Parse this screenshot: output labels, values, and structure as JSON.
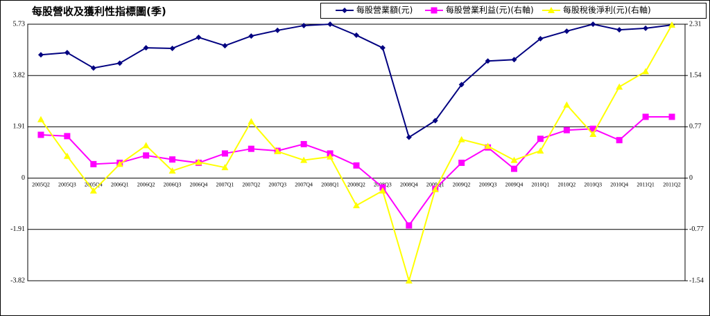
{
  "chart_data": {
    "type": "line",
    "title": "每股營收及獲利性指標圖(季)",
    "categories": [
      "2005Q2",
      "2005Q3",
      "2005Q4",
      "2006Q1",
      "2006Q2",
      "2006Q3",
      "2006Q4",
      "2007Q1",
      "2007Q2",
      "2007Q3",
      "2007Q4",
      "2008Q1",
      "2008Q2",
      "2008Q3",
      "2008Q4",
      "2009Q1",
      "2009Q2",
      "2009Q3",
      "2009Q4",
      "2010Q1",
      "2010Q2",
      "2010Q3",
      "2010Q4",
      "2011Q1",
      "2011Q2"
    ],
    "series": [
      {
        "name": "每股營業額(元)",
        "color": "#000080",
        "marker": "diamond",
        "values": [
          4.59,
          4.67,
          4.1,
          4.28,
          4.85,
          4.83,
          5.24,
          4.93,
          5.29,
          5.5,
          5.68,
          5.73,
          5.32,
          4.85,
          1.52,
          2.14,
          3.48,
          4.36,
          4.41,
          5.19,
          5.47,
          5.73,
          5.52,
          5.58,
          5.7
        ]
      },
      {
        "name": "每股營業利益(元)(右軸)",
        "color": "#ff00ff",
        "marker": "square",
        "axis": "y2",
        "values": [
          0.65,
          0.63,
          0.21,
          0.23,
          0.34,
          0.28,
          0.23,
          0.37,
          0.44,
          0.41,
          0.51,
          0.37,
          0.19,
          -0.14,
          -0.71,
          -0.16,
          0.23,
          0.46,
          0.14,
          0.59,
          0.72,
          0.74,
          0.57,
          0.92,
          0.92
        ]
      },
      {
        "name": "每股稅後淨利(元)(右軸)",
        "color": "#ffff00",
        "marker": "triangle",
        "axis": "y2",
        "values": [
          0.88,
          0.33,
          -0.19,
          0.21,
          0.49,
          0.11,
          0.24,
          0.16,
          0.85,
          0.4,
          0.27,
          0.32,
          -0.41,
          -0.19,
          -1.54,
          -0.17,
          0.58,
          0.48,
          0.27,
          0.41,
          1.1,
          0.66,
          1.37,
          1.6,
          2.3
        ]
      }
    ],
    "ylim": [
      -3.82,
      5.73
    ],
    "yticks": [
      -3.82,
      -1.91,
      0,
      1.91,
      3.82,
      5.73
    ],
    "y2lim": [
      -1.54,
      2.31
    ],
    "y2ticks": [
      -1.54,
      -0.77,
      0,
      0.77,
      1.54,
      2.31
    ],
    "grid": true
  }
}
